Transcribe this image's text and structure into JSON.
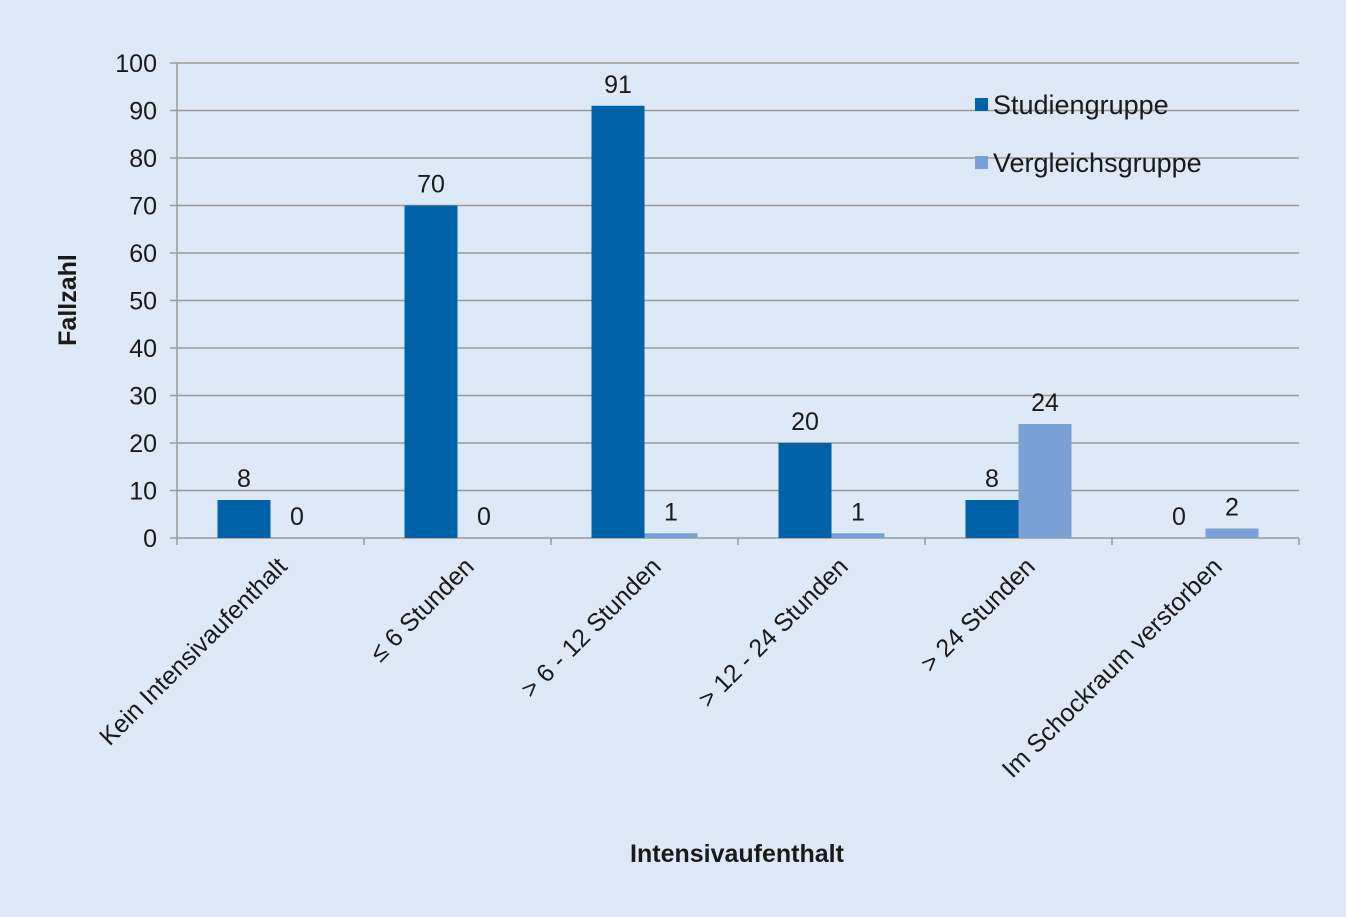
{
  "chart_data": {
    "type": "bar",
    "xlabel": "Intensivaufenthalt",
    "ylabel": "Fallzahl",
    "ylim": [
      0,
      100
    ],
    "yticks": [
      0,
      10,
      20,
      30,
      40,
      50,
      60,
      70,
      80,
      90,
      100
    ],
    "grid": true,
    "legend_position": "top-right",
    "categories": [
      "Kein Intensivaufenthalt",
      "≤ 6 Stunden",
      "> 6 - 12 Stunden",
      "> 12 - 24 Stunden",
      "> 24 Stunden",
      "Im Schockraum verstorben"
    ],
    "series": [
      {
        "name": "Studiengruppe",
        "color": "#0063aa",
        "values": [
          8,
          70,
          91,
          20,
          8,
          0
        ]
      },
      {
        "name": "Vergleichsgruppe",
        "color": "#7aa1d5",
        "values": [
          0,
          0,
          1,
          1,
          24,
          2
        ]
      }
    ],
    "colors": {
      "background": "#dde9f6",
      "gridline": "#9a9a9a",
      "text": "#1a1a1a"
    }
  }
}
